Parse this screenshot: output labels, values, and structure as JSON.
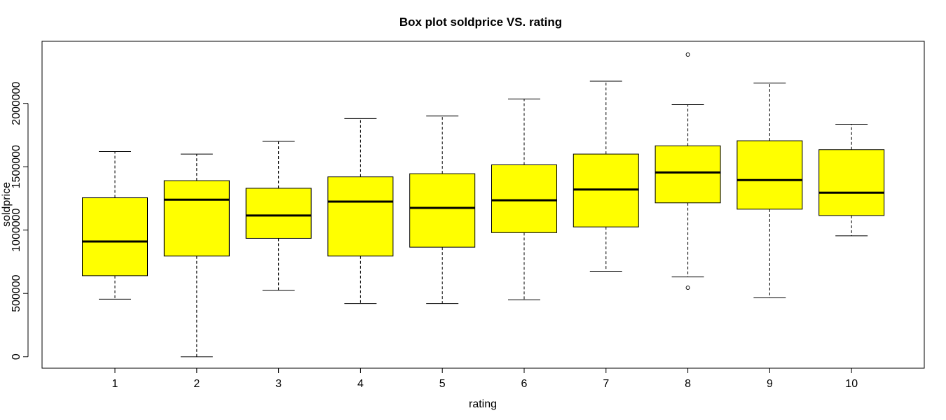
{
  "chart_data": {
    "type": "boxplot",
    "title": "Box plot soldprice VS. rating",
    "xlabel": "rating",
    "ylabel": "soldprice",
    "categories": [
      "1",
      "2",
      "3",
      "4",
      "5",
      "6",
      "7",
      "8",
      "9",
      "10"
    ],
    "yticks": [
      0,
      500000,
      1000000,
      1500000,
      2000000
    ],
    "ytick_labels": [
      "0",
      "500000",
      "1000000",
      "1500000",
      "2000000"
    ],
    "ylim": [
      -90000,
      2490000
    ],
    "box_color": "#ffff00",
    "grid": false,
    "boxes": [
      {
        "category": "1",
        "whisker_low": 455000,
        "q1": 640000,
        "median": 910000,
        "q3": 1255000,
        "whisker_high": 1620000,
        "outliers": []
      },
      {
        "category": "2",
        "whisker_low": 0,
        "q1": 795000,
        "median": 1240000,
        "q3": 1390000,
        "whisker_high": 1600000,
        "outliers": []
      },
      {
        "category": "3",
        "whisker_low": 525000,
        "q1": 935000,
        "median": 1115000,
        "q3": 1330000,
        "whisker_high": 1700000,
        "outliers": []
      },
      {
        "category": "4",
        "whisker_low": 420000,
        "q1": 795000,
        "median": 1225000,
        "q3": 1420000,
        "whisker_high": 1880000,
        "outliers": []
      },
      {
        "category": "5",
        "whisker_low": 420000,
        "q1": 865000,
        "median": 1175000,
        "q3": 1445000,
        "whisker_high": 1900000,
        "outliers": []
      },
      {
        "category": "6",
        "whisker_low": 450000,
        "q1": 980000,
        "median": 1235000,
        "q3": 1515000,
        "whisker_high": 2035000,
        "outliers": []
      },
      {
        "category": "7",
        "whisker_low": 675000,
        "q1": 1025000,
        "median": 1320000,
        "q3": 1600000,
        "whisker_high": 2175000,
        "outliers": []
      },
      {
        "category": "8",
        "whisker_low": 630000,
        "q1": 1215000,
        "median": 1455000,
        "q3": 1665000,
        "whisker_high": 1990000,
        "outliers": [
          545000,
          2385000
        ]
      },
      {
        "category": "9",
        "whisker_low": 465000,
        "q1": 1165000,
        "median": 1395000,
        "q3": 1705000,
        "whisker_high": 2160000,
        "outliers": []
      },
      {
        "category": "10",
        "whisker_low": 955000,
        "q1": 1115000,
        "median": 1295000,
        "q3": 1635000,
        "whisker_high": 1835000,
        "outliers": []
      }
    ]
  }
}
